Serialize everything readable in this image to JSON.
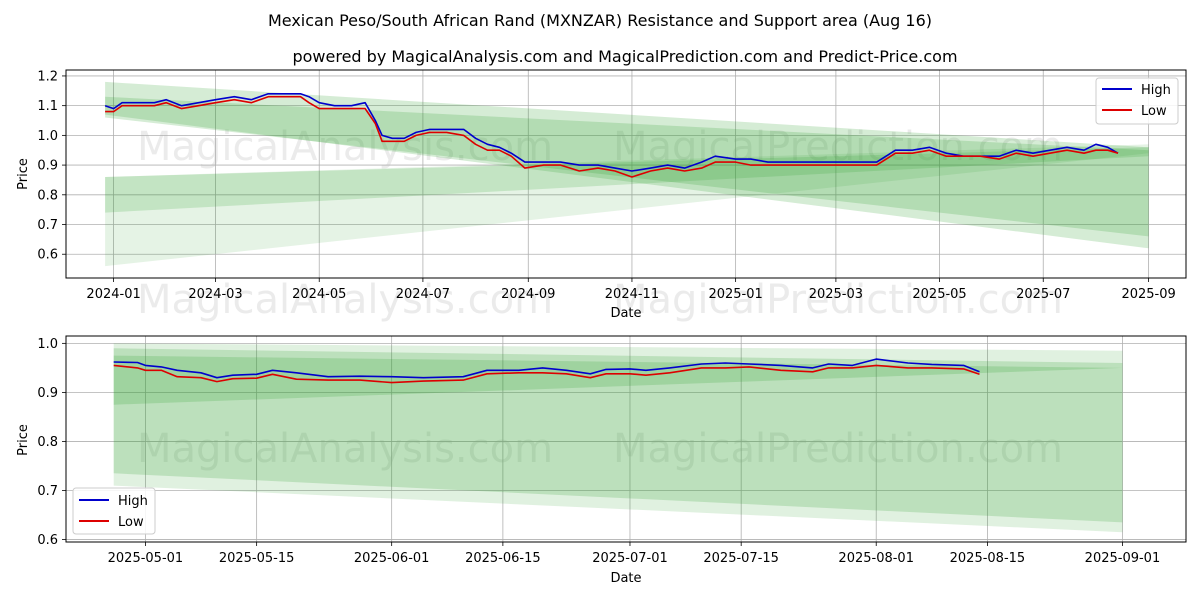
{
  "title": "Mexican Peso/South African Rand (MXNZAR) Resistance and Support area (Aug 16)",
  "subtitle": "powered by MagicalAnalysis.com and MagicalPrediction.com and Predict-Price.com",
  "watermarks": [
    "MagicalAnalysis.com",
    "MagicalPrediction.com"
  ],
  "colors": {
    "high": "#0000cc",
    "low": "#dd0000",
    "band": "#2ca02c"
  },
  "chart_data": [
    {
      "type": "line",
      "xlabel": "Date",
      "ylabel": "Price",
      "xlim": [
        "2023-12-04",
        "2025-09-23"
      ],
      "ylim": [
        0.52,
        1.22
      ],
      "xticks": [
        "2024-01",
        "2024-03",
        "2024-05",
        "2024-07",
        "2024-09",
        "2024-11",
        "2025-01",
        "2025-03",
        "2025-05",
        "2025-07",
        "2025-09"
      ],
      "yticks": [
        0.6,
        0.7,
        0.8,
        0.9,
        1.0,
        1.1,
        1.2
      ],
      "legend": {
        "position": "top-right",
        "entries": [
          "High",
          "Low"
        ]
      },
      "grid": true,
      "bands": [
        {
          "start": "2023-12-27",
          "end": "2025-09-01",
          "top": [
            1.18,
            0.96
          ],
          "bottom": [
            1.07,
            0.62
          ],
          "opacity": 0.2
        },
        {
          "start": "2023-12-27",
          "end": "2025-09-01",
          "top": [
            1.13,
            0.95
          ],
          "bottom": [
            1.06,
            0.66
          ],
          "opacity": 0.2
        },
        {
          "start": "2023-12-27",
          "end": "2025-09-01",
          "top": [
            0.86,
            0.97
          ],
          "bottom": [
            0.56,
            0.94
          ],
          "opacity": 0.12
        },
        {
          "start": "2023-12-27",
          "end": "2025-09-01",
          "top": [
            0.86,
            0.96
          ],
          "bottom": [
            0.74,
            0.93
          ],
          "opacity": 0.18
        }
      ],
      "series": [
        {
          "name": "High",
          "points": [
            [
              "2023-12-27",
              1.1
            ],
            [
              "2024-01-01",
              1.09
            ],
            [
              "2024-01-06",
              1.11
            ],
            [
              "2024-01-15",
              1.11
            ],
            [
              "2024-01-25",
              1.11
            ],
            [
              "2024-02-01",
              1.12
            ],
            [
              "2024-02-10",
              1.1
            ],
            [
              "2024-02-20",
              1.11
            ],
            [
              "2024-03-01",
              1.12
            ],
            [
              "2024-03-12",
              1.13
            ],
            [
              "2024-03-22",
              1.12
            ],
            [
              "2024-04-01",
              1.14
            ],
            [
              "2024-04-12",
              1.14
            ],
            [
              "2024-04-20",
              1.14
            ],
            [
              "2024-04-25",
              1.13
            ],
            [
              "2024-05-01",
              1.11
            ],
            [
              "2024-05-10",
              1.1
            ],
            [
              "2024-05-20",
              1.1
            ],
            [
              "2024-05-28",
              1.11
            ],
            [
              "2024-06-03",
              1.05
            ],
            [
              "2024-06-07",
              1.0
            ],
            [
              "2024-06-13",
              0.99
            ],
            [
              "2024-06-20",
              0.99
            ],
            [
              "2024-06-27",
              1.01
            ],
            [
              "2024-07-05",
              1.02
            ],
            [
              "2024-07-15",
              1.02
            ],
            [
              "2024-07-25",
              1.02
            ],
            [
              "2024-08-01",
              0.99
            ],
            [
              "2024-08-08",
              0.97
            ],
            [
              "2024-08-15",
              0.96
            ],
            [
              "2024-08-22",
              0.94
            ],
            [
              "2024-08-30",
              0.91
            ],
            [
              "2024-09-10",
              0.91
            ],
            [
              "2024-09-20",
              0.91
            ],
            [
              "2024-10-01",
              0.9
            ],
            [
              "2024-10-12",
              0.9
            ],
            [
              "2024-10-22",
              0.89
            ],
            [
              "2024-11-01",
              0.88
            ],
            [
              "2024-11-12",
              0.89
            ],
            [
              "2024-11-22",
              0.9
            ],
            [
              "2024-12-02",
              0.89
            ],
            [
              "2024-12-12",
              0.91
            ],
            [
              "2024-12-20",
              0.93
            ],
            [
              "2025-01-01",
              0.92
            ],
            [
              "2025-01-10",
              0.92
            ],
            [
              "2025-01-20",
              0.91
            ],
            [
              "2025-02-01",
              0.91
            ],
            [
              "2025-02-12",
              0.91
            ],
            [
              "2025-02-22",
              0.91
            ],
            [
              "2025-03-05",
              0.91
            ],
            [
              "2025-03-15",
              0.91
            ],
            [
              "2025-03-25",
              0.91
            ],
            [
              "2025-04-05",
              0.95
            ],
            [
              "2025-04-15",
              0.95
            ],
            [
              "2025-04-25",
              0.96
            ],
            [
              "2025-05-05",
              0.94
            ],
            [
              "2025-05-15",
              0.93
            ],
            [
              "2025-05-25",
              0.93
            ],
            [
              "2025-06-05",
              0.93
            ],
            [
              "2025-06-15",
              0.95
            ],
            [
              "2025-06-25",
              0.94
            ],
            [
              "2025-07-05",
              0.95
            ],
            [
              "2025-07-15",
              0.96
            ],
            [
              "2025-07-25",
              0.95
            ],
            [
              "2025-08-01",
              0.97
            ],
            [
              "2025-08-08",
              0.96
            ],
            [
              "2025-08-14",
              0.94
            ]
          ]
        },
        {
          "name": "Low",
          "points": [
            [
              "2023-12-27",
              1.08
            ],
            [
              "2024-01-01",
              1.08
            ],
            [
              "2024-01-06",
              1.1
            ],
            [
              "2024-01-15",
              1.1
            ],
            [
              "2024-01-25",
              1.1
            ],
            [
              "2024-02-01",
              1.11
            ],
            [
              "2024-02-10",
              1.09
            ],
            [
              "2024-02-20",
              1.1
            ],
            [
              "2024-03-01",
              1.11
            ],
            [
              "2024-03-12",
              1.12
            ],
            [
              "2024-03-22",
              1.11
            ],
            [
              "2024-04-01",
              1.13
            ],
            [
              "2024-04-12",
              1.13
            ],
            [
              "2024-04-20",
              1.13
            ],
            [
              "2024-04-25",
              1.11
            ],
            [
              "2024-05-01",
              1.09
            ],
            [
              "2024-05-10",
              1.09
            ],
            [
              "2024-05-20",
              1.09
            ],
            [
              "2024-05-28",
              1.09
            ],
            [
              "2024-06-03",
              1.04
            ],
            [
              "2024-06-07",
              0.98
            ],
            [
              "2024-06-13",
              0.98
            ],
            [
              "2024-06-20",
              0.98
            ],
            [
              "2024-06-27",
              1.0
            ],
            [
              "2024-07-05",
              1.01
            ],
            [
              "2024-07-15",
              1.01
            ],
            [
              "2024-07-25",
              1.0
            ],
            [
              "2024-08-01",
              0.97
            ],
            [
              "2024-08-08",
              0.95
            ],
            [
              "2024-08-15",
              0.95
            ],
            [
              "2024-08-22",
              0.93
            ],
            [
              "2024-08-30",
              0.89
            ],
            [
              "2024-09-10",
              0.9
            ],
            [
              "2024-09-20",
              0.9
            ],
            [
              "2024-10-01",
              0.88
            ],
            [
              "2024-10-12",
              0.89
            ],
            [
              "2024-10-22",
              0.88
            ],
            [
              "2024-11-01",
              0.86
            ],
            [
              "2024-11-12",
              0.88
            ],
            [
              "2024-11-22",
              0.89
            ],
            [
              "2024-12-02",
              0.88
            ],
            [
              "2024-12-12",
              0.89
            ],
            [
              "2024-12-20",
              0.91
            ],
            [
              "2025-01-01",
              0.91
            ],
            [
              "2025-01-10",
              0.9
            ],
            [
              "2025-01-20",
              0.9
            ],
            [
              "2025-02-01",
              0.9
            ],
            [
              "2025-02-12",
              0.9
            ],
            [
              "2025-02-22",
              0.9
            ],
            [
              "2025-03-05",
              0.9
            ],
            [
              "2025-03-15",
              0.9
            ],
            [
              "2025-03-25",
              0.9
            ],
            [
              "2025-04-05",
              0.94
            ],
            [
              "2025-04-15",
              0.94
            ],
            [
              "2025-04-25",
              0.95
            ],
            [
              "2025-05-05",
              0.93
            ],
            [
              "2025-05-15",
              0.93
            ],
            [
              "2025-05-25",
              0.93
            ],
            [
              "2025-06-05",
              0.92
            ],
            [
              "2025-06-15",
              0.94
            ],
            [
              "2025-06-25",
              0.93
            ],
            [
              "2025-07-05",
              0.94
            ],
            [
              "2025-07-15",
              0.95
            ],
            [
              "2025-07-25",
              0.94
            ],
            [
              "2025-08-01",
              0.95
            ],
            [
              "2025-08-08",
              0.95
            ],
            [
              "2025-08-14",
              0.94
            ]
          ]
        }
      ]
    },
    {
      "type": "line",
      "xlabel": "Date",
      "ylabel": "Price",
      "xlim": [
        "2025-04-21",
        "2025-09-09"
      ],
      "ylim": [
        0.595,
        1.015
      ],
      "xticks": [
        "2025-05-01",
        "2025-05-15",
        "2025-06-01",
        "2025-06-15",
        "2025-07-01",
        "2025-07-15",
        "2025-08-01",
        "2025-08-15",
        "2025-09-01"
      ],
      "yticks": [
        0.6,
        0.7,
        0.8,
        0.9,
        1.0
      ],
      "legend": {
        "position": "bottom-left",
        "entries": [
          "High",
          "Low"
        ]
      },
      "grid": true,
      "bands": [
        {
          "start": "2025-04-27",
          "end": "2025-09-01",
          "top": [
            1.0,
            0.985
          ],
          "bottom": [
            0.71,
            0.615
          ],
          "opacity": 0.15
        },
        {
          "start": "2025-04-27",
          "end": "2025-09-01",
          "top": [
            0.99,
            0.96
          ],
          "bottom": [
            0.735,
            0.635
          ],
          "opacity": 0.2
        },
        {
          "start": "2025-04-27",
          "end": "2025-09-01",
          "top": [
            0.975,
            0.95
          ],
          "bottom": [
            0.875,
            0.95
          ],
          "opacity": 0.2
        }
      ],
      "series": [
        {
          "name": "High",
          "points": [
            [
              "2025-04-27",
              0.962
            ],
            [
              "2025-04-30",
              0.961
            ],
            [
              "2025-05-01",
              0.955
            ],
            [
              "2025-05-03",
              0.952
            ],
            [
              "2025-05-05",
              0.945
            ],
            [
              "2025-05-08",
              0.94
            ],
            [
              "2025-05-10",
              0.93
            ],
            [
              "2025-05-12",
              0.935
            ],
            [
              "2025-05-15",
              0.937
            ],
            [
              "2025-05-17",
              0.945
            ],
            [
              "2025-05-20",
              0.94
            ],
            [
              "2025-05-24",
              0.932
            ],
            [
              "2025-05-28",
              0.933
            ],
            [
              "2025-06-01",
              0.932
            ],
            [
              "2025-06-05",
              0.93
            ],
            [
              "2025-06-10",
              0.932
            ],
            [
              "2025-06-13",
              0.945
            ],
            [
              "2025-06-17",
              0.945
            ],
            [
              "2025-06-20",
              0.95
            ],
            [
              "2025-06-23",
              0.945
            ],
            [
              "2025-06-26",
              0.938
            ],
            [
              "2025-06-28",
              0.947
            ],
            [
              "2025-07-01",
              0.948
            ],
            [
              "2025-07-03",
              0.945
            ],
            [
              "2025-07-06",
              0.95
            ],
            [
              "2025-07-10",
              0.958
            ],
            [
              "2025-07-13",
              0.96
            ],
            [
              "2025-07-16",
              0.958
            ],
            [
              "2025-07-20",
              0.955
            ],
            [
              "2025-07-24",
              0.95
            ],
            [
              "2025-07-26",
              0.958
            ],
            [
              "2025-07-29",
              0.955
            ],
            [
              "2025-08-01",
              0.968
            ],
            [
              "2025-08-05",
              0.96
            ],
            [
              "2025-08-08",
              0.957
            ],
            [
              "2025-08-12",
              0.955
            ],
            [
              "2025-08-14",
              0.942
            ]
          ]
        },
        {
          "name": "Low",
          "points": [
            [
              "2025-04-27",
              0.955
            ],
            [
              "2025-04-30",
              0.95
            ],
            [
              "2025-05-01",
              0.945
            ],
            [
              "2025-05-03",
              0.945
            ],
            [
              "2025-05-05",
              0.932
            ],
            [
              "2025-05-08",
              0.93
            ],
            [
              "2025-05-10",
              0.922
            ],
            [
              "2025-05-12",
              0.928
            ],
            [
              "2025-05-15",
              0.929
            ],
            [
              "2025-05-17",
              0.937
            ],
            [
              "2025-05-20",
              0.927
            ],
            [
              "2025-05-24",
              0.925
            ],
            [
              "2025-05-28",
              0.925
            ],
            [
              "2025-06-01",
              0.92
            ],
            [
              "2025-06-05",
              0.923
            ],
            [
              "2025-06-10",
              0.925
            ],
            [
              "2025-06-13",
              0.938
            ],
            [
              "2025-06-17",
              0.94
            ],
            [
              "2025-06-20",
              0.94
            ],
            [
              "2025-06-23",
              0.938
            ],
            [
              "2025-06-26",
              0.93
            ],
            [
              "2025-06-28",
              0.938
            ],
            [
              "2025-07-01",
              0.938
            ],
            [
              "2025-07-03",
              0.935
            ],
            [
              "2025-07-06",
              0.94
            ],
            [
              "2025-07-10",
              0.95
            ],
            [
              "2025-07-13",
              0.95
            ],
            [
              "2025-07-16",
              0.952
            ],
            [
              "2025-07-20",
              0.945
            ],
            [
              "2025-07-24",
              0.942
            ],
            [
              "2025-07-26",
              0.95
            ],
            [
              "2025-07-29",
              0.95
            ],
            [
              "2025-08-01",
              0.955
            ],
            [
              "2025-08-05",
              0.95
            ],
            [
              "2025-08-08",
              0.95
            ],
            [
              "2025-08-12",
              0.948
            ],
            [
              "2025-08-14",
              0.937
            ]
          ]
        }
      ]
    }
  ]
}
